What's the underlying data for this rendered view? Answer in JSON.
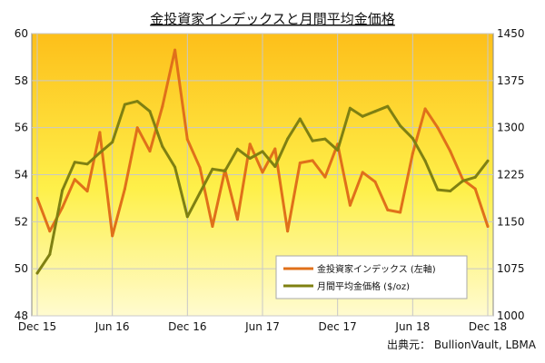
{
  "chart_data": {
    "type": "line",
    "title": "金投資家インデックスと月間平均金価格",
    "source": "出典元： BullionVault, LBMA",
    "x_ticks": [
      "Dec 15",
      "Jun 16",
      "Dec 16",
      "Jun 17",
      "Dec 17",
      "Jun 18",
      "Dec 18"
    ],
    "y_left": {
      "min": 48,
      "max": 60,
      "ticks": [
        48,
        50,
        52,
        54,
        56,
        58,
        60
      ]
    },
    "y_right": {
      "min": 1000,
      "max": 1450,
      "ticks": [
        1000,
        1075,
        1150,
        1225,
        1300,
        1375,
        1450
      ]
    },
    "grid": true,
    "legend_position": "bottom-right",
    "series": [
      {
        "name": "金投資家インデックス (左軸)",
        "axis": "left",
        "color": "#e0701a",
        "values": [
          53.0,
          51.6,
          52.6,
          53.8,
          53.3,
          55.8,
          51.4,
          53.4,
          56.0,
          55.0,
          56.9,
          59.3,
          55.5,
          54.3,
          51.8,
          54.2,
          52.1,
          55.3,
          54.1,
          55.1,
          51.6,
          54.5,
          54.6,
          53.9,
          55.3,
          52.7,
          54.1,
          53.7,
          52.5,
          52.4,
          54.9,
          56.8,
          56.0,
          55.0,
          53.8,
          53.4,
          51.8
        ]
      },
      {
        "name": "月間平均金価格 ($/oz)",
        "axis": "right",
        "color": "#7f8012",
        "values": [
          1068,
          1098,
          1200,
          1245,
          1242,
          1260,
          1277,
          1337,
          1342,
          1326,
          1270,
          1237,
          1158,
          1196,
          1234,
          1231,
          1266,
          1251,
          1262,
          1238,
          1282,
          1314,
          1279,
          1282,
          1264,
          1331,
          1318,
          1326,
          1334,
          1303,
          1283,
          1247,
          1201,
          1199,
          1215,
          1221,
          1247
        ]
      }
    ]
  }
}
